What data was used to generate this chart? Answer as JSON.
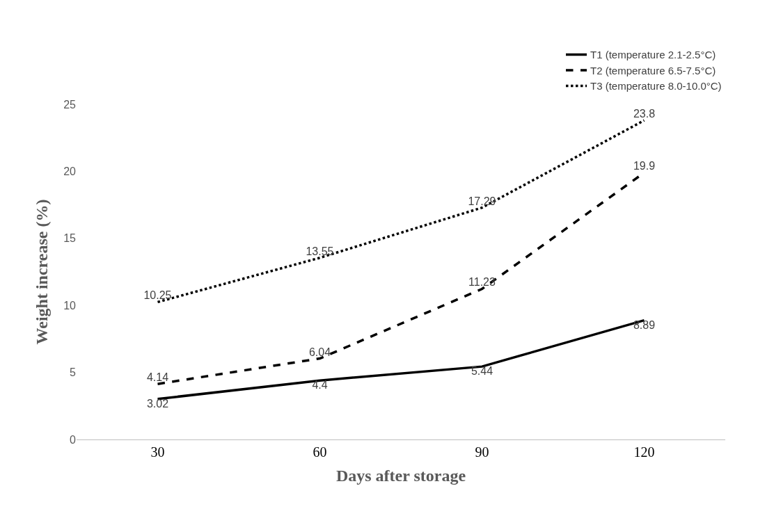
{
  "chart_data": {
    "type": "line",
    "xlabel": "Days after storage",
    "ylabel": "Weight increase (%)",
    "categories": [
      "30",
      "60",
      "90",
      "120"
    ],
    "series": [
      {
        "name": "T1 (temperature 2.1-2.5°C)",
        "color": "#000000",
        "line_style": "solid",
        "values": [
          3.02,
          4.4,
          5.44,
          8.89
        ]
      },
      {
        "name": "T2 (temperature 6.5-7.5°C)",
        "color": "#000000",
        "line_style": "dashed",
        "values": [
          4.14,
          6.04,
          11.23,
          19.9
        ]
      },
      {
        "name": "T3 (temperature 8.0-10.0°C)",
        "color": "#000000",
        "line_style": "dotted",
        "values": [
          10.25,
          13.55,
          17.29,
          23.8
        ]
      }
    ],
    "ylim": [
      0,
      25
    ],
    "yticks": [
      0,
      5,
      10,
      15,
      20,
      25
    ],
    "legend": "top right",
    "marker": "none",
    "data_labels": true
  }
}
